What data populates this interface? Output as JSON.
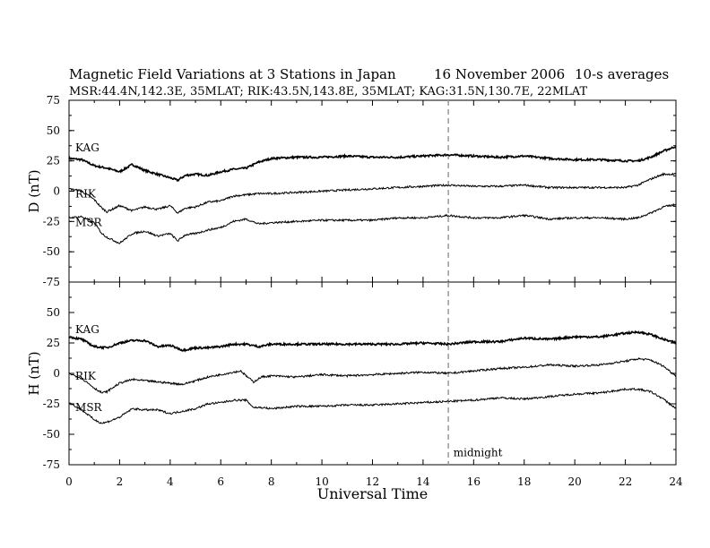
{
  "header": {
    "title": "Magnetic Field Variations at 3 Stations in Japan",
    "date": "16 November 2006",
    "averaging": "10-s averages",
    "stations_line": "MSR:44.4N,142.3E, 35MLAT;   RIK:43.5N,143.8E, 35MLAT;   KAG:31.5N,130.7E, 22MLAT"
  },
  "chart_data": [
    {
      "type": "line",
      "ylabel": "D (nT)",
      "xlabel": "",
      "xlim": [
        0,
        24
      ],
      "ylim": [
        -75,
        75
      ],
      "yticks": [
        -75,
        -50,
        -25,
        0,
        25,
        50,
        75
      ],
      "grid": false,
      "series": [
        {
          "name": "KAG",
          "color": "#000000",
          "width": 1.6,
          "x": [
            0,
            0.5,
            1,
            1.5,
            2,
            2.5,
            3,
            3.5,
            4,
            4.3,
            4.6,
            5,
            5.5,
            6,
            6.5,
            7,
            7.5,
            8,
            9,
            10,
            11,
            12,
            13,
            14,
            15,
            16,
            17,
            18,
            19,
            20,
            21,
            22,
            22.5,
            23,
            23.5,
            24
          ],
          "y": [
            27,
            26,
            21,
            19,
            16,
            22,
            17,
            14,
            11,
            9,
            13,
            14,
            13,
            16,
            18,
            19,
            24,
            27,
            28,
            28,
            29,
            28,
            28,
            29,
            30,
            29,
            28,
            29,
            27,
            26,
            26,
            25,
            25,
            28,
            33,
            37
          ]
        },
        {
          "name": "RIK",
          "color": "#000000",
          "width": 1.0,
          "x": [
            0,
            0.5,
            1,
            1.3,
            1.5,
            2,
            2.5,
            3,
            3.5,
            4,
            4.3,
            4.6,
            5,
            5.5,
            6,
            6.5,
            7,
            7.5,
            8,
            9,
            10,
            11,
            12,
            13,
            14,
            15,
            16,
            17,
            18,
            19,
            20,
            21,
            22,
            22.5,
            23,
            23.5,
            24
          ],
          "y": [
            2,
            0,
            -7,
            -14,
            -17,
            -12,
            -16,
            -13,
            -15,
            -12,
            -18,
            -14,
            -13,
            -9,
            -8,
            -4,
            -3,
            -2,
            -2,
            -1,
            0,
            1,
            2,
            3,
            4,
            5,
            4,
            4,
            5,
            3,
            3,
            3,
            3,
            5,
            10,
            14,
            14
          ]
        },
        {
          "name": "MSR",
          "color": "#000000",
          "width": 1.0,
          "x": [
            0,
            0.5,
            1,
            1.3,
            1.5,
            2,
            2.5,
            3,
            3.5,
            4,
            4.3,
            4.6,
            5,
            5.5,
            6,
            6.5,
            7,
            7.5,
            8,
            9,
            10,
            11,
            12,
            13,
            14,
            15,
            16,
            17,
            18,
            19,
            20,
            21,
            22,
            22.5,
            23,
            23.5,
            24
          ],
          "y": [
            -22,
            -21,
            -26,
            -35,
            -38,
            -43,
            -35,
            -33,
            -37,
            -35,
            -41,
            -36,
            -35,
            -32,
            -30,
            -25,
            -23,
            -27,
            -26,
            -25,
            -24,
            -24,
            -24,
            -22,
            -22,
            -20,
            -22,
            -22,
            -20,
            -23,
            -22,
            -22,
            -23,
            -22,
            -18,
            -13,
            -11
          ]
        }
      ],
      "annotations": [
        {
          "text": "KAG",
          "x": 0.25,
          "y": 33
        },
        {
          "text": "RIK",
          "x": 0.25,
          "y": -5
        },
        {
          "text": "MSR",
          "x": 0.25,
          "y": -29
        }
      ],
      "vline": {
        "x": 15,
        "style": "dashed"
      }
    },
    {
      "type": "line",
      "ylabel": "H (nT)",
      "xlabel": "Universal Time",
      "xlim": [
        0,
        24
      ],
      "ylim": [
        -75,
        75
      ],
      "yticks": [
        -75,
        -50,
        -25,
        0,
        25,
        50,
        75
      ],
      "xticks": [
        0,
        2,
        4,
        6,
        8,
        10,
        12,
        14,
        16,
        18,
        20,
        22,
        24
      ],
      "grid": false,
      "series": [
        {
          "name": "KAG",
          "color": "#000000",
          "width": 1.6,
          "x": [
            0,
            0.5,
            1,
            1.5,
            2,
            2.5,
            3,
            3.5,
            4,
            4.5,
            5,
            5.5,
            6,
            6.5,
            7,
            7.5,
            8,
            9,
            10,
            11,
            12,
            13,
            14,
            15,
            16,
            17,
            18,
            19,
            20,
            21,
            22,
            22.5,
            23,
            23.5,
            24
          ],
          "y": [
            30,
            28,
            22,
            21,
            25,
            27,
            27,
            22,
            23,
            19,
            21,
            21,
            22,
            24,
            24,
            22,
            24,
            24,
            24,
            24,
            24,
            24,
            25,
            24,
            26,
            26,
            29,
            28,
            30,
            30,
            33,
            34,
            32,
            28,
            25
          ]
        },
        {
          "name": "RIK",
          "color": "#000000",
          "width": 1.0,
          "x": [
            0,
            0.5,
            1,
            1.3,
            1.5,
            2,
            2.5,
            3,
            3.5,
            4,
            4.5,
            5,
            5.5,
            6,
            6.5,
            6.8,
            7,
            7.3,
            7.6,
            8,
            9,
            10,
            11,
            12,
            13,
            14,
            15,
            16,
            17,
            18,
            19,
            20,
            21,
            22,
            22.5,
            23,
            23.5,
            24
          ],
          "y": [
            0,
            -4,
            -12,
            -16,
            -15,
            -8,
            -5,
            -6,
            -7,
            -8,
            -9,
            -6,
            -3,
            -1,
            1,
            2,
            -2,
            -7,
            -3,
            -2,
            -3,
            -1,
            -2,
            -1,
            0,
            1,
            0,
            2,
            4,
            5,
            7,
            6,
            7,
            10,
            12,
            11,
            6,
            -2
          ]
        },
        {
          "name": "MSR",
          "color": "#000000",
          "width": 1.0,
          "x": [
            0,
            0.5,
            1,
            1.3,
            1.5,
            2,
            2.5,
            3,
            3.5,
            4,
            4.5,
            5,
            5.5,
            6,
            6.5,
            7,
            7.3,
            7.6,
            8,
            9,
            10,
            11,
            12,
            13,
            14,
            15,
            16,
            17,
            18,
            19,
            20,
            21,
            22,
            22.5,
            23,
            23.5,
            24
          ],
          "y": [
            -24,
            -30,
            -38,
            -41,
            -40,
            -36,
            -29,
            -30,
            -30,
            -33,
            -31,
            -29,
            -25,
            -24,
            -22,
            -22,
            -28,
            -28,
            -29,
            -27,
            -27,
            -26,
            -26,
            -25,
            -24,
            -23,
            -22,
            -20,
            -21,
            -19,
            -17,
            -16,
            -13,
            -13,
            -15,
            -21,
            -29
          ]
        }
      ],
      "annotations": [
        {
          "text": "KAG",
          "x": 0.25,
          "y": 33
        },
        {
          "text": "RIK",
          "x": 0.25,
          "y": -5
        },
        {
          "text": "MSR",
          "x": 0.25,
          "y": -31
        },
        {
          "text": "midnight",
          "x": 15.2,
          "y": -68
        }
      ],
      "vline": {
        "x": 15,
        "style": "dashed"
      }
    }
  ]
}
